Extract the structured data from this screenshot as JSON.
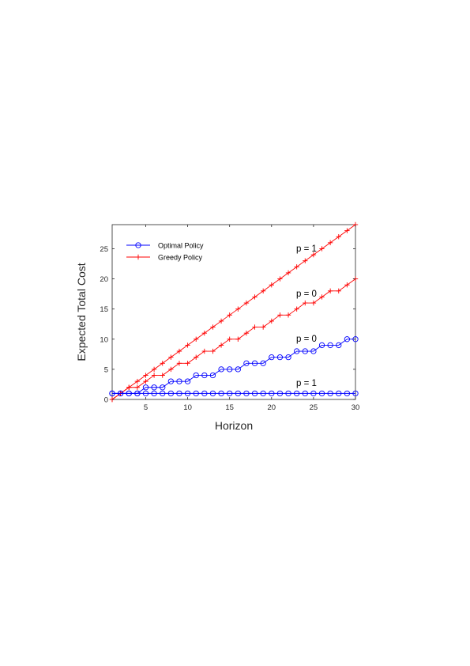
{
  "chart_data": {
    "type": "line",
    "xlabel": "Horizon",
    "ylabel": "Expected Total Cost",
    "xlim": [
      1,
      30
    ],
    "ylim": [
      0,
      29
    ],
    "xticks": [
      5,
      10,
      15,
      20,
      25,
      30
    ],
    "yticks": [
      0,
      5,
      10,
      15,
      20,
      25
    ],
    "grid": false,
    "legend_position": "top-left",
    "legend": [
      {
        "label": "Optimal Policy",
        "marker": "circle",
        "color": "#0000ff"
      },
      {
        "label": "Greedy Policy",
        "marker": "plus",
        "color": "#ff0000"
      }
    ],
    "x": [
      1,
      2,
      3,
      4,
      5,
      6,
      7,
      8,
      9,
      10,
      11,
      12,
      13,
      14,
      15,
      16,
      17,
      18,
      19,
      20,
      21,
      22,
      23,
      24,
      25,
      26,
      27,
      28,
      29,
      30
    ],
    "series": [
      {
        "policy": "Greedy Policy",
        "label": "p = 1",
        "color": "#ff0000",
        "marker": "plus",
        "values": [
          0,
          1,
          2,
          3,
          4,
          5,
          6,
          7,
          8,
          9,
          10,
          11,
          12,
          13,
          14,
          15,
          16,
          17,
          18,
          19,
          20,
          21,
          22,
          23,
          24,
          25,
          26,
          27,
          28,
          29
        ]
      },
      {
        "policy": "Greedy Policy",
        "label": "p = 0",
        "color": "#ff0000",
        "marker": "plus",
        "values": [
          0,
          1,
          2,
          2,
          3,
          4,
          4,
          5,
          6,
          6,
          7,
          8,
          8,
          9,
          10,
          10,
          11,
          12,
          12,
          13,
          14,
          14,
          15,
          16,
          16,
          17,
          18,
          18,
          19,
          20
        ]
      },
      {
        "policy": "Optimal Policy",
        "label": "p = 0",
        "color": "#0000ff",
        "marker": "circle",
        "values": [
          1,
          1,
          1,
          1,
          2,
          2,
          2,
          3,
          3,
          3,
          4,
          4,
          4,
          5,
          5,
          5,
          6,
          6,
          6,
          7,
          7,
          7,
          8,
          8,
          8,
          9,
          9,
          9,
          10,
          10
        ]
      },
      {
        "policy": "Optimal Policy",
        "label": "p = 1",
        "color": "#0000ff",
        "marker": "circle",
        "values": [
          1,
          1,
          1,
          1,
          1,
          1,
          1,
          1,
          1,
          1,
          1,
          1,
          1,
          1,
          1,
          1,
          1,
          1,
          1,
          1,
          1,
          1,
          1,
          1,
          1,
          1,
          1,
          1,
          1,
          1
        ]
      }
    ]
  }
}
